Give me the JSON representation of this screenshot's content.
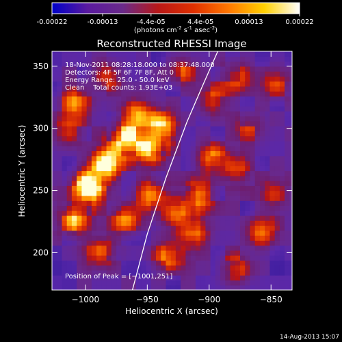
{
  "colorbar": {
    "tick_labels": [
      "-0.00022",
      "-0.00013",
      "-4.4e-05",
      "4.4e-05",
      "0.00013",
      "0.00022"
    ],
    "tick_values": [
      -0.00022,
      -0.00013,
      -4.4e-05,
      4.4e-05,
      0.00013,
      0.00022
    ],
    "range": [
      -0.00022,
      0.00022
    ],
    "units_prefix": "(photons cm",
    "units_exp1": "-2",
    "units_mid": " s",
    "units_exp2": "-1",
    "units_mid2": " asec",
    "units_exp3": "-2",
    "units_suffix": ")",
    "colors": [
      "#0000c8",
      "#5a1aa0",
      "#6a2a8a",
      "#b81818",
      "#e03000",
      "#ff7800",
      "#ffd000",
      "#ffffff"
    ]
  },
  "chart_data": {
    "type": "heatmap",
    "title": "Reconstructed RHESSI Image",
    "xlabel": "Heliocentric X (arcsec)",
    "ylabel": "Heliocentric Y (arcsec)",
    "xlim": [
      -1027,
      -833
    ],
    "ylim": [
      170,
      362
    ],
    "x_ticks": [
      -1000,
      -950,
      -900,
      -850
    ],
    "x_tick_labels": [
      "−1000",
      "−950",
      "−900",
      "−850"
    ],
    "y_ticks": [
      200,
      250,
      300,
      350
    ],
    "y_tick_labels": [
      "200",
      "250",
      "300",
      "350"
    ],
    "info_lines": [
      "18-Nov-2011 08:28:18.000 to 08:37:48.000",
      "Detectors: 4F 5F 6F 7F 8F, Att 0",
      "Energy Range: 25.0 - 50.0 keV",
      "Clean    Total counts: 1.93E+03"
    ],
    "peak_label": "Position of Peak = ",
    "peak_value": "[−1001,251]",
    "peak_position": [
      -1001,
      251
    ],
    "limb_curve": [
      [
        -962,
        170
      ],
      [
        -950,
        215
      ],
      [
        -935,
        260
      ],
      [
        -918,
        305
      ],
      [
        -905,
        335
      ],
      [
        -893,
        362
      ]
    ],
    "sources": [
      {
        "x": -1000,
        "y": 251,
        "w": 1.0
      },
      {
        "x": -985,
        "y": 270,
        "w": 0.85
      },
      {
        "x": -970,
        "y": 290,
        "w": 0.75
      },
      {
        "x": -950,
        "y": 282,
        "w": 0.7
      },
      {
        "x": -940,
        "y": 300,
        "w": 0.65
      },
      {
        "x": -960,
        "y": 310,
        "w": 0.6
      },
      {
        "x": -1010,
        "y": 225,
        "w": 0.65
      },
      {
        "x": -990,
        "y": 200,
        "w": 0.55
      },
      {
        "x": -970,
        "y": 225,
        "w": 0.55
      },
      {
        "x": -950,
        "y": 245,
        "w": 0.6
      },
      {
        "x": -930,
        "y": 230,
        "w": 0.6
      },
      {
        "x": -910,
        "y": 245,
        "w": 0.55
      },
      {
        "x": -915,
        "y": 215,
        "w": 0.5
      },
      {
        "x": -935,
        "y": 195,
        "w": 0.55
      },
      {
        "x": -900,
        "y": 275,
        "w": 0.55
      },
      {
        "x": -880,
        "y": 265,
        "w": 0.45
      },
      {
        "x": -860,
        "y": 215,
        "w": 0.5
      },
      {
        "x": -880,
        "y": 185,
        "w": 0.5
      },
      {
        "x": -1010,
        "y": 320,
        "w": 0.5
      },
      {
        "x": -985,
        "y": 340,
        "w": 0.45
      },
      {
        "x": -1015,
        "y": 295,
        "w": 0.45
      },
      {
        "x": -900,
        "y": 320,
        "w": 0.45
      },
      {
        "x": -880,
        "y": 340,
        "w": 0.45
      },
      {
        "x": -925,
        "y": 345,
        "w": 0.45
      },
      {
        "x": -848,
        "y": 335,
        "w": 0.4
      },
      {
        "x": -870,
        "y": 300,
        "w": 0.35
      },
      {
        "x": -850,
        "y": 245,
        "w": 0.35
      }
    ],
    "grid": false
  },
  "footer": {
    "date": "14-Aug-2013 15:07"
  }
}
